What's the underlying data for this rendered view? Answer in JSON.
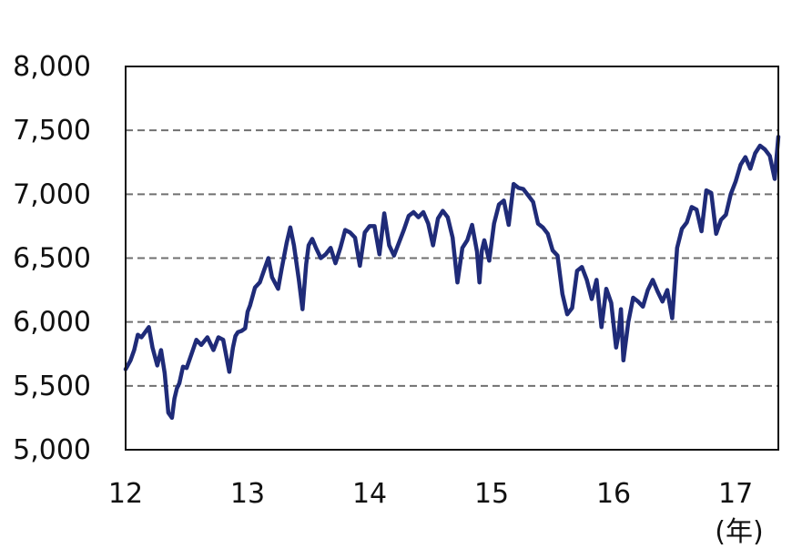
{
  "chart_data": {
    "type": "line",
    "title": "",
    "xlabel": "(年)",
    "ylabel": "",
    "x_ticks": [
      "12",
      "13",
      "14",
      "15",
      "16",
      "17"
    ],
    "x_tick_values": [
      12,
      13,
      14,
      15,
      16,
      17
    ],
    "xlim": [
      12,
      17.35
    ],
    "y_ticks": [
      "5,000",
      "5,500",
      "6,000",
      "6,500",
      "7,000",
      "7,500",
      "8,000"
    ],
    "y_tick_values": [
      5000,
      5500,
      6000,
      6500,
      7000,
      7500,
      8000
    ],
    "ylim": [
      5000,
      8000
    ],
    "grid": "horizontal dashed",
    "legend": "none",
    "line_color": "#1f2b78",
    "series": [
      {
        "x": [
          12.0,
          12.04,
          12.07,
          12.1,
          12.13,
          12.16,
          12.19,
          12.22,
          12.26,
          12.29,
          12.32,
          12.35,
          12.38,
          12.4,
          12.42,
          12.44,
          12.47,
          12.5,
          12.54,
          12.58,
          12.62,
          12.67,
          12.72,
          12.76,
          12.8,
          12.85,
          12.88,
          12.9,
          12.92,
          12.95,
          12.98,
          13.0,
          13.02,
          13.06,
          13.1,
          13.14,
          13.17,
          13.2,
          13.25,
          13.28,
          13.32,
          13.35,
          13.38,
          13.42,
          13.45,
          13.48,
          13.5,
          13.53,
          13.56,
          13.6,
          13.64,
          13.68,
          13.72,
          13.76,
          13.8,
          13.84,
          13.88,
          13.92,
          13.96,
          14.0,
          14.04,
          14.08,
          14.12,
          14.16,
          14.2,
          14.24,
          14.28,
          14.32,
          14.36,
          14.4,
          14.44,
          14.48,
          14.52,
          14.56,
          14.6,
          14.64,
          14.68,
          14.72,
          14.76,
          14.8,
          14.84,
          14.88,
          14.9,
          14.92,
          14.94,
          14.98,
          15.02,
          15.06,
          15.1,
          15.14,
          15.18,
          15.22,
          15.26,
          15.3,
          15.34,
          15.38,
          15.42,
          15.46,
          15.5,
          15.54,
          15.58,
          15.62,
          15.66,
          15.7,
          15.74,
          15.78,
          15.82,
          15.86,
          15.9,
          15.94,
          15.98,
          16.02,
          16.04,
          16.06,
          16.08,
          16.12,
          16.16,
          16.2,
          16.24,
          16.28,
          16.32,
          16.36,
          16.4,
          16.44,
          16.48,
          16.52,
          16.56,
          16.6,
          16.64,
          16.68,
          16.72,
          16.76,
          16.8,
          16.84,
          16.88,
          16.92,
          16.96,
          17.0,
          17.04,
          17.08,
          17.12,
          17.16,
          17.2,
          17.24,
          17.28,
          17.32,
          17.35
        ],
        "values": [
          5630,
          5700,
          5780,
          5900,
          5880,
          5920,
          5960,
          5800,
          5660,
          5780,
          5600,
          5290,
          5250,
          5400,
          5480,
          5520,
          5650,
          5640,
          5750,
          5860,
          5820,
          5880,
          5780,
          5880,
          5860,
          5610,
          5800,
          5890,
          5920,
          5930,
          5950,
          6080,
          6130,
          6270,
          6310,
          6420,
          6500,
          6350,
          6260,
          6420,
          6620,
          6740,
          6600,
          6330,
          6100,
          6450,
          6600,
          6650,
          6580,
          6500,
          6530,
          6580,
          6460,
          6580,
          6720,
          6700,
          6660,
          6440,
          6700,
          6750,
          6750,
          6530,
          6850,
          6600,
          6520,
          6620,
          6720,
          6830,
          6860,
          6820,
          6860,
          6770,
          6600,
          6810,
          6870,
          6820,
          6660,
          6310,
          6580,
          6640,
          6760,
          6550,
          6310,
          6560,
          6640,
          6480,
          6770,
          6920,
          6950,
          6760,
          7080,
          7050,
          7040,
          6990,
          6940,
          6770,
          6740,
          6690,
          6560,
          6520,
          6220,
          6060,
          6110,
          6400,
          6430,
          6330,
          6180,
          6330,
          5960,
          6260,
          6150,
          5800,
          5900,
          6100,
          5700,
          6000,
          6190,
          6160,
          6120,
          6250,
          6330,
          6240,
          6160,
          6250,
          6030,
          6580,
          6730,
          6780,
          6900,
          6880,
          6710,
          7030,
          7010,
          6690,
          6800,
          6840,
          7000,
          7100,
          7230,
          7290,
          7200,
          7320,
          7380,
          7350,
          7300,
          7120,
          7450
        ]
      }
    ]
  }
}
